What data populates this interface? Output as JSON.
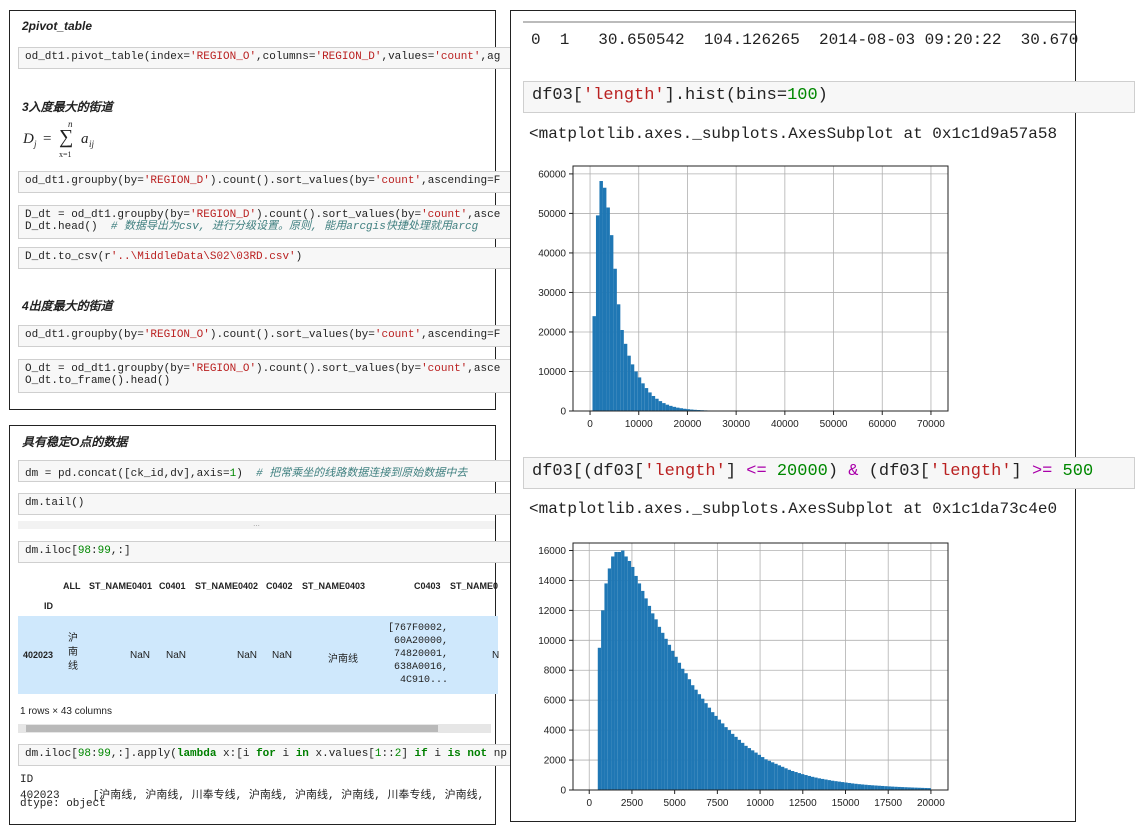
{
  "top_left": {
    "h1": "2pivot_table",
    "cell1": [
      "od_dt1.pivot_table(index=",
      "'REGION_O'",
      ",columns=",
      "'REGION_D'",
      ",values=",
      "'count'",
      ",ag"
    ],
    "h2": "3入度最大的街道",
    "formula": {
      "lhs": "D",
      "sub_j": "j",
      "eq": "=",
      "sum": "∑",
      "upper": "n",
      "lower": "x=1",
      "rhs": "a",
      "sub_ij": "ij"
    },
    "cell2": [
      "od_dt1.groupby(by=",
      "'REGION_D'",
      ").count().sort_values(by=",
      "'count'",
      ",ascending=F"
    ],
    "cell3_line1": [
      "D_dt = od_dt1.groupby(by=",
      "'REGION_D'",
      ").count().sort_values(by=",
      "'count'",
      ",asce"
    ],
    "cell3_line2": [
      "D_dt.head()  ",
      "# 数据导出为csv, 进行分级设置。原则, 能用arcgis快捷处理就用arcg"
    ],
    "cell4": [
      "D_dt.to_csv(r",
      "'..\\MiddleData\\S02\\03RD.csv'",
      ")"
    ],
    "h3": "4出度最大的街道",
    "cell5": [
      "od_dt1.groupby(by=",
      "'REGION_O'",
      ").count().sort_values(by=",
      "'count'",
      ",ascending=F"
    ],
    "cell6_line1": [
      "O_dt = od_dt1.groupby(by=",
      "'REGION_O'",
      ").count().sort_values(by=",
      "'count'",
      ",asce"
    ],
    "cell6_line2": "O_dt.to_frame().head()"
  },
  "bottom_left": {
    "h1": "具有稳定O点的数据",
    "cell1": [
      "dm = pd.concat([ck_id,dv],axis=",
      "1",
      ")  ",
      "# 把常乘坐的线路数据连接到原始数据中去"
    ],
    "cell2": "dm.tail()",
    "ellipsis": "...",
    "cell3": [
      "dm.iloc[",
      "98",
      ":",
      "99",
      ",:]"
    ],
    "table": {
      "columns": [
        "ALL",
        "ST_NAME0401",
        "C0401",
        "ST_NAME0402",
        "C0402",
        "ST_NAME0403",
        "C0403",
        "ST_NAME0"
      ],
      "index_name": "ID",
      "row_id": "402023",
      "all_lines": [
        "沪",
        "南",
        "线"
      ],
      "nan": "NaN",
      "st_name0403": "沪南线",
      "c0403_lines": [
        "[767F0002,",
        "60A20000,",
        "74820001,",
        "638A0016,",
        "4C910..."
      ],
      "trail": "N"
    },
    "summary": "1 rows × 43 columns",
    "cell4": [
      "dm.iloc[",
      "98",
      ":",
      "99",
      ",:].apply(",
      "lambda",
      " x:[i ",
      "for",
      " i ",
      "in",
      " x.values[",
      "1",
      "::",
      "2",
      "] ",
      "if",
      " i ",
      "is not",
      " np"
    ],
    "out_line1": "ID",
    "out_line2": "402023     [沪南线, 沪南线, 川奉专线, 沪南线, 沪南线, 沪南线, 川奉专线, 沪南线,",
    "out_line3": "dtype: object"
  },
  "right": {
    "row_output": "0  1   30.650542  104.126265  2014-08-03 09:20:22  30.670",
    "cell1": [
      "df03[",
      "'length'",
      "].hist(bins=",
      "100",
      ")"
    ],
    "out1": "<matplotlib.axes._subplots.AxesSubplot at 0x1c1d9a57a58",
    "cell2": [
      "df03[(df03[",
      "'length'",
      "] ",
      "<=",
      " ",
      "20000",
      ") ",
      "&",
      " (df03[",
      "'length'",
      "] ",
      ">=",
      " ",
      "500"
    ],
    "out2": "<matplotlib.axes._subplots.AxesSubplot at 0x1c1da73c4e0"
  },
  "colors": {
    "bar": "#1f77b4",
    "grid": "#b0b0b0",
    "string": "#ba2121",
    "keyword": "#008000",
    "comment": "#408080",
    "selected_row": "#cfe8fc"
  },
  "chart_data": [
    {
      "type": "bar",
      "title": "",
      "xlabel": "",
      "ylabel": "",
      "bins": 100,
      "xlim": [
        -3500,
        73500
      ],
      "ylim": [
        0,
        62000
      ],
      "xticks": [
        0,
        10000,
        20000,
        30000,
        40000,
        50000,
        60000,
        70000
      ],
      "yticks": [
        0,
        10000,
        20000,
        30000,
        40000,
        50000,
        60000
      ],
      "grid": true,
      "bin_width": 715,
      "x_start": 500,
      "values": [
        24000,
        49500,
        58200,
        56500,
        51500,
        44500,
        36000,
        27000,
        20500,
        17000,
        14000,
        11800,
        10000,
        8500,
        7000,
        5800,
        4700,
        3800,
        3100,
        2500,
        2000,
        1600,
        1300,
        1050,
        850,
        700,
        570,
        460,
        370,
        300,
        250,
        200,
        160,
        130,
        100,
        80,
        60,
        45,
        30,
        20
      ]
    },
    {
      "type": "bar",
      "title": "",
      "xlabel": "",
      "ylabel": "",
      "bins": 100,
      "xlim": [
        -950,
        21000
      ],
      "ylim": [
        0,
        16500
      ],
      "xticks": [
        0,
        2500,
        5000,
        7500,
        10000,
        12500,
        15000,
        17500,
        20000
      ],
      "yticks": [
        0,
        2000,
        4000,
        6000,
        8000,
        10000,
        12000,
        14000,
        16000
      ],
      "grid": true,
      "x_start": 500,
      "x_end": 20000,
      "values": [
        9500,
        12000,
        13800,
        14800,
        15600,
        15900,
        15900,
        16000,
        15600,
        15300,
        14900,
        14300,
        13800,
        13300,
        12800,
        12300,
        11800,
        11400,
        10900,
        10500,
        10100,
        9700,
        9300,
        8900,
        8500,
        8100,
        7800,
        7400,
        7000,
        6700,
        6400,
        6100,
        5800,
        5500,
        5200,
        4950,
        4700,
        4450,
        4200,
        4000,
        3750,
        3550,
        3350,
        3150,
        2950,
        2800,
        2650,
        2500,
        2350,
        2200,
        2050,
        1950,
        1850,
        1750,
        1650,
        1550,
        1450,
        1350,
        1270,
        1200,
        1130,
        1060,
        1000,
        940,
        880,
        830,
        780,
        740,
        700,
        660,
        620,
        590,
        560,
        530,
        500,
        470,
        440,
        415,
        390,
        370,
        350,
        330,
        315,
        300,
        285,
        270,
        255,
        240,
        228,
        216,
        205,
        195,
        185,
        175,
        166,
        158,
        150,
        142,
        135,
        128
      ]
    }
  ]
}
